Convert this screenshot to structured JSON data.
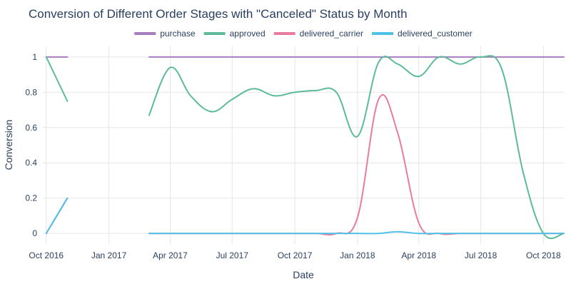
{
  "chart_data": {
    "type": "line",
    "title": "Conversion of Different Order Stages with \"Canceled\" Status by Month",
    "xlabel": "Date",
    "ylabel": "Conversion",
    "x_range": [
      "2016-09-26",
      "2018-10-31"
    ],
    "y_range": [
      -0.06,
      1.06
    ],
    "x_ticks": [
      {
        "date": "2016-10-01",
        "label": "Oct 2016"
      },
      {
        "date": "2017-01-01",
        "label": "Jan 2017"
      },
      {
        "date": "2017-04-01",
        "label": "Apr 2017"
      },
      {
        "date": "2017-07-01",
        "label": "Jul 2017"
      },
      {
        "date": "2017-10-01",
        "label": "Oct 2017"
      },
      {
        "date": "2018-01-01",
        "label": "Jan 2018"
      },
      {
        "date": "2018-04-01",
        "label": "Apr 2018"
      },
      {
        "date": "2018-07-01",
        "label": "Jul 2018"
      },
      {
        "date": "2018-10-01",
        "label": "Oct 2018"
      }
    ],
    "y_ticks": [
      {
        "value": 0,
        "label": "0"
      },
      {
        "value": 0.2,
        "label": "0.2"
      },
      {
        "value": 0.4,
        "label": "0.4"
      },
      {
        "value": 0.6,
        "label": "0.6"
      },
      {
        "value": 0.8,
        "label": "0.8"
      },
      {
        "value": 1,
        "label": "1"
      }
    ],
    "grid": true,
    "legend_position": "top-center",
    "series": [
      {
        "name": "purchase",
        "color": "#a97cbf",
        "segments": [
          [
            [
              "2016-10-01",
              1
            ],
            [
              "2016-11-01",
              1
            ]
          ],
          [
            [
              "2017-03-01",
              1
            ],
            [
              "2017-04-01",
              1
            ],
            [
              "2017-05-01",
              1
            ],
            [
              "2017-06-01",
              1
            ],
            [
              "2017-07-01",
              1
            ],
            [
              "2017-08-01",
              1
            ],
            [
              "2017-09-01",
              1
            ],
            [
              "2017-10-01",
              1
            ],
            [
              "2017-11-01",
              1
            ],
            [
              "2017-12-01",
              1
            ],
            [
              "2018-01-01",
              1
            ],
            [
              "2018-02-01",
              1
            ],
            [
              "2018-03-01",
              1
            ],
            [
              "2018-04-01",
              1
            ],
            [
              "2018-05-01",
              1
            ],
            [
              "2018-06-01",
              1
            ],
            [
              "2018-07-01",
              1
            ],
            [
              "2018-08-01",
              1
            ],
            [
              "2018-09-01",
              1
            ],
            [
              "2018-10-01",
              1
            ],
            [
              "2018-10-31",
              1
            ]
          ]
        ]
      },
      {
        "name": "approved",
        "color": "#5dbb99",
        "segments": [
          [
            [
              "2016-10-01",
              1
            ],
            [
              "2016-11-01",
              0.75
            ]
          ],
          [
            [
              "2017-03-01",
              0.67
            ],
            [
              "2017-04-01",
              0.94
            ],
            [
              "2017-05-01",
              0.78
            ],
            [
              "2017-06-01",
              0.69
            ],
            [
              "2017-07-01",
              0.76
            ],
            [
              "2017-08-01",
              0.82
            ],
            [
              "2017-09-01",
              0.78
            ],
            [
              "2017-10-01",
              0.8
            ],
            [
              "2017-11-01",
              0.81
            ],
            [
              "2017-12-01",
              0.8
            ],
            [
              "2018-01-01",
              0.55
            ],
            [
              "2018-02-01",
              0.97
            ],
            [
              "2018-03-01",
              0.96
            ],
            [
              "2018-04-01",
              0.89
            ],
            [
              "2018-05-01",
              1
            ],
            [
              "2018-06-01",
              0.96
            ],
            [
              "2018-07-01",
              1
            ],
            [
              "2018-08-01",
              0.93
            ],
            [
              "2018-09-01",
              0.35
            ],
            [
              "2018-10-01",
              0
            ],
            [
              "2018-10-31",
              0
            ]
          ]
        ]
      },
      {
        "name": "delivered_carrier",
        "color": "#e77c9f",
        "segments": [
          [
            [
              "2016-10-01",
              0
            ],
            [
              "2016-11-01",
              0.2
            ]
          ],
          [
            [
              "2017-03-01",
              0
            ],
            [
              "2017-04-01",
              0
            ],
            [
              "2017-05-01",
              0
            ],
            [
              "2017-06-01",
              0
            ],
            [
              "2017-07-01",
              0
            ],
            [
              "2017-08-01",
              0
            ],
            [
              "2017-09-01",
              0
            ],
            [
              "2017-10-01",
              0
            ],
            [
              "2017-11-01",
              0
            ],
            [
              "2017-12-01",
              0
            ],
            [
              "2018-01-01",
              0.09
            ],
            [
              "2018-02-01",
              0.76
            ],
            [
              "2018-03-01",
              0.57
            ],
            [
              "2018-04-01",
              0.06
            ],
            [
              "2018-05-01",
              0
            ],
            [
              "2018-06-01",
              0
            ],
            [
              "2018-07-01",
              0
            ],
            [
              "2018-08-01",
              0
            ],
            [
              "2018-09-01",
              0
            ],
            [
              "2018-10-01",
              0
            ],
            [
              "2018-10-31",
              0
            ]
          ]
        ]
      },
      {
        "name": "delivered_customer",
        "color": "#4fc0e8",
        "segments": [
          [
            [
              "2016-10-01",
              0
            ],
            [
              "2016-11-01",
              0.2
            ]
          ],
          [
            [
              "2017-03-01",
              0
            ],
            [
              "2017-04-01",
              0
            ],
            [
              "2017-05-01",
              0
            ],
            [
              "2017-06-01",
              0
            ],
            [
              "2017-07-01",
              0
            ],
            [
              "2017-08-01",
              0
            ],
            [
              "2017-09-01",
              0
            ],
            [
              "2017-10-01",
              0
            ],
            [
              "2017-11-01",
              0
            ],
            [
              "2017-12-01",
              0
            ],
            [
              "2018-01-01",
              0
            ],
            [
              "2018-02-01",
              0
            ],
            [
              "2018-03-01",
              0.01
            ],
            [
              "2018-04-01",
              0
            ],
            [
              "2018-05-01",
              0
            ],
            [
              "2018-06-01",
              0
            ],
            [
              "2018-07-01",
              0
            ],
            [
              "2018-08-01",
              0
            ],
            [
              "2018-09-01",
              0
            ],
            [
              "2018-10-01",
              0
            ],
            [
              "2018-10-31",
              0
            ]
          ]
        ]
      }
    ]
  }
}
